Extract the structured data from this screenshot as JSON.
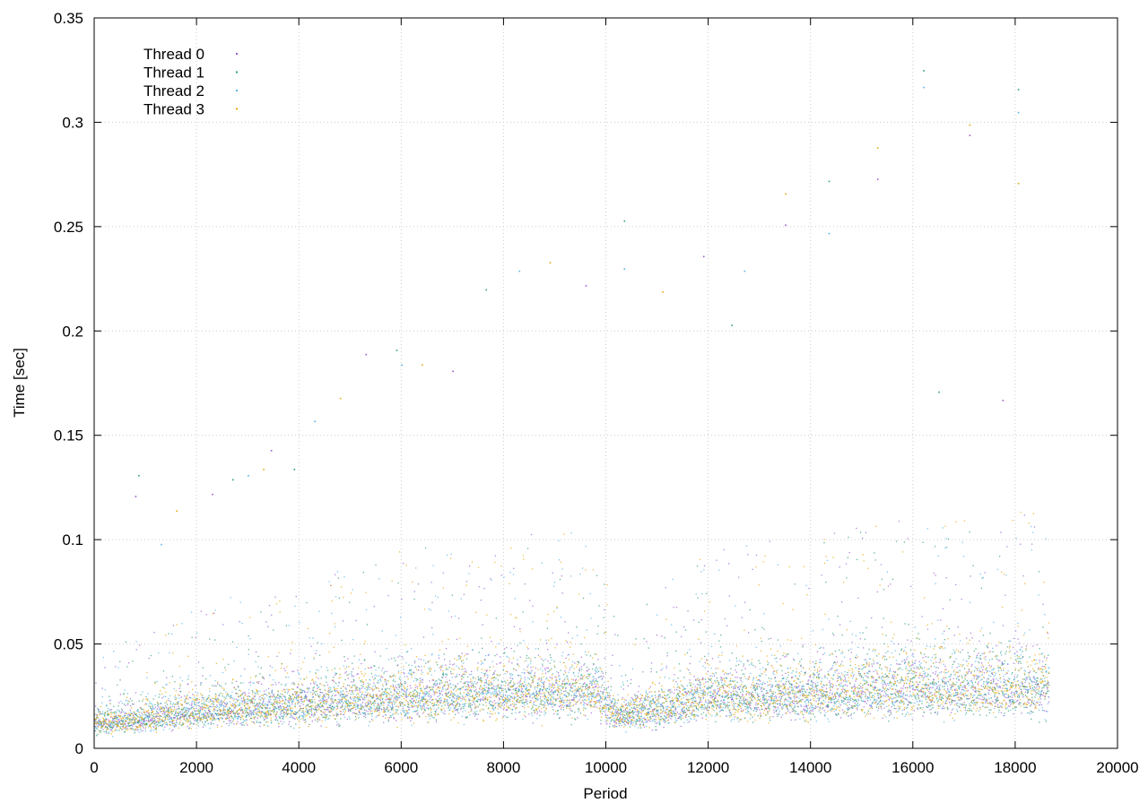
{
  "chart_data": {
    "type": "scatter",
    "xlabel": "Period",
    "ylabel": "Time [sec]",
    "xlim": [
      0,
      20000
    ],
    "ylim": [
      0,
      0.35
    ],
    "x_ticks": [
      "0",
      "2000",
      "4000",
      "6000",
      "8000",
      "10000",
      "12000",
      "14000",
      "16000",
      "18000",
      "20000"
    ],
    "y_ticks": [
      "0",
      "0.05",
      "0.1",
      "0.15",
      "0.2",
      "0.25",
      "0.3",
      "0.35"
    ],
    "grid": true,
    "legend_position": "top-left",
    "point_count_per_series": 18650,
    "series": [
      {
        "name": "Thread 0",
        "color": "#9b59d0"
      },
      {
        "name": "Thread 1",
        "color": "#2e9e73"
      },
      {
        "name": "Thread 2",
        "color": "#56b4e9"
      },
      {
        "name": "Thread 3",
        "color": "#e6a90f"
      }
    ],
    "trend": {
      "x": [
        0,
        2000,
        4000,
        6000,
        8000,
        9800,
        10200,
        12000,
        14000,
        16000,
        18000,
        18650
      ],
      "median_y": [
        0.012,
        0.018,
        0.022,
        0.025,
        0.027,
        0.028,
        0.016,
        0.025,
        0.027,
        0.029,
        0.03,
        0.03
      ]
    },
    "outliers": [
      {
        "x": 800,
        "y": 0.121
      },
      {
        "x": 860,
        "y": 0.131
      },
      {
        "x": 1300,
        "y": 0.098
      },
      {
        "x": 1600,
        "y": 0.114
      },
      {
        "x": 2300,
        "y": 0.122
      },
      {
        "x": 2700,
        "y": 0.129
      },
      {
        "x": 3000,
        "y": 0.131
      },
      {
        "x": 3300,
        "y": 0.134
      },
      {
        "x": 3450,
        "y": 0.143
      },
      {
        "x": 3900,
        "y": 0.134
      },
      {
        "x": 4300,
        "y": 0.157
      },
      {
        "x": 4800,
        "y": 0.168
      },
      {
        "x": 5300,
        "y": 0.189
      },
      {
        "x": 5900,
        "y": 0.191
      },
      {
        "x": 6000,
        "y": 0.184
      },
      {
        "x": 6400,
        "y": 0.184
      },
      {
        "x": 7000,
        "y": 0.181
      },
      {
        "x": 7650,
        "y": 0.22
      },
      {
        "x": 8300,
        "y": 0.229
      },
      {
        "x": 8900,
        "y": 0.233
      },
      {
        "x": 9600,
        "y": 0.222
      },
      {
        "x": 10350,
        "y": 0.253
      },
      {
        "x": 10350,
        "y": 0.23
      },
      {
        "x": 11100,
        "y": 0.219
      },
      {
        "x": 11900,
        "y": 0.236
      },
      {
        "x": 12450,
        "y": 0.203
      },
      {
        "x": 12700,
        "y": 0.229
      },
      {
        "x": 13500,
        "y": 0.266
      },
      {
        "x": 13500,
        "y": 0.251
      },
      {
        "x": 14350,
        "y": 0.272
      },
      {
        "x": 14350,
        "y": 0.247
      },
      {
        "x": 15300,
        "y": 0.288
      },
      {
        "x": 15300,
        "y": 0.273
      },
      {
        "x": 16200,
        "y": 0.325
      },
      {
        "x": 16200,
        "y": 0.317
      },
      {
        "x": 17100,
        "y": 0.299
      },
      {
        "x": 17100,
        "y": 0.294
      },
      {
        "x": 18050,
        "y": 0.316
      },
      {
        "x": 18050,
        "y": 0.305
      },
      {
        "x": 18050,
        "y": 0.271
      },
      {
        "x": 17750,
        "y": 0.167
      },
      {
        "x": 16500,
        "y": 0.171
      }
    ]
  }
}
